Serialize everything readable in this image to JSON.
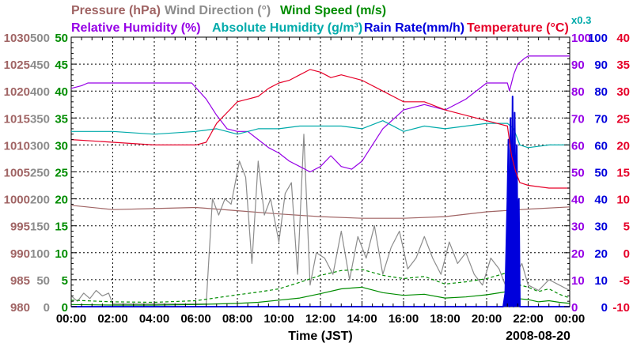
{
  "chart_data": {
    "type": "line",
    "title": "",
    "date": "2008-08-20",
    "xlabel": "Time (JST)",
    "x_ticks": [
      "00:00",
      "02:00",
      "04:00",
      "06:00",
      "08:00",
      "10:00",
      "12:00",
      "14:00",
      "16:00",
      "18:00",
      "20:00",
      "22:00",
      "00:00"
    ],
    "x_range_hours": [
      0,
      24
    ],
    "legend": [
      {
        "key": "pressure",
        "label": "Pressure (hPa)",
        "color": "#a06464"
      },
      {
        "key": "wind_dir",
        "label": "Wind Direction (°)",
        "color": "#8c8c8c"
      },
      {
        "key": "wind_speed",
        "label": "Wind Speed (m/s)",
        "color": "#008c00"
      },
      {
        "key": "rh",
        "label": "Relative Humidity (%)",
        "color": "#9600e6"
      },
      {
        "key": "ah",
        "label": "Absolute Humidity (g/m³)",
        "color": "#00aaaa"
      },
      {
        "key": "rain",
        "label": "Rain Rate(mm/h)",
        "color": "#0000dc"
      },
      {
        "key": "temp",
        "label": "Temperature (°C)",
        "color": "#e60028"
      }
    ],
    "ah_scale_label": "x0.3",
    "axes": {
      "pressure": {
        "range": [
          980,
          1030
        ],
        "ticks": [
          "1030",
          "1025",
          "1020",
          "1015",
          "1010",
          "1005",
          "1000",
          "995",
          "990",
          "985",
          "980"
        ],
        "color": "#a06464"
      },
      "wind_dir": {
        "range": [
          0,
          500
        ],
        "ticks": [
          "500",
          "450",
          "400",
          "350",
          "300",
          "250",
          "200",
          "150",
          "100",
          "50",
          "0"
        ],
        "color": "#8c8c8c"
      },
      "wind_speed": {
        "range": [
          0,
          50
        ],
        "ticks": [
          "50",
          "45",
          "40",
          "35",
          "30",
          "25",
          "20",
          "15",
          "10",
          "5",
          "0"
        ],
        "color": "#008c00"
      },
      "rh": {
        "range": [
          0,
          100
        ],
        "ticks": [
          "100",
          "90",
          "80",
          "70",
          "60",
          "50",
          "40",
          "30",
          "20",
          "10",
          "0"
        ],
        "color": "#9600e6"
      },
      "rain": {
        "range": [
          0,
          100
        ],
        "ticks": [
          "100",
          "90",
          "80",
          "70",
          "60",
          "50",
          "40",
          "30",
          "20",
          "10",
          "0"
        ],
        "color": "#0000dc"
      },
      "temp": {
        "range": [
          -10,
          40
        ],
        "ticks": [
          "40",
          "35",
          "30",
          "25",
          "20",
          "15",
          "10",
          "5",
          "0",
          "-5",
          "-10"
        ],
        "color": "#e60028"
      }
    },
    "series": [
      {
        "name": "Pressure (hPa)",
        "axis": "pressure",
        "color": "#a06464",
        "dash": "",
        "x": [
          0,
          2,
          4,
          6,
          8,
          10,
          12,
          14,
          16,
          18,
          20,
          22,
          24
        ],
        "y": [
          998.8,
          998.0,
          998.2,
          998.4,
          997.8,
          997.2,
          996.7,
          996.4,
          996.4,
          996.7,
          997.6,
          998.1,
          998.5
        ]
      },
      {
        "name": "Wind Direction (°)",
        "axis": "wind_dir",
        "color": "#8c8c8c",
        "dash": "",
        "x": [
          0,
          0.3,
          0.6,
          0.9,
          1.2,
          1.5,
          1.8,
          2,
          6.5,
          6.8,
          7.1,
          7.4,
          7.7,
          8.1,
          8.4,
          8.7,
          9.0,
          9.3,
          9.6,
          10.0,
          10.3,
          10.6,
          10.9,
          11.2,
          11.5,
          11.8,
          12.2,
          12.6,
          13.0,
          13.4,
          13.8,
          14.2,
          14.6,
          15.0,
          15.4,
          15.8,
          16.2,
          16.6,
          17.0,
          17.4,
          17.8,
          18.2,
          18.6,
          19.0,
          19.4,
          19.8,
          20.2,
          20.6,
          21.0,
          21.4,
          21.7,
          22.0,
          22.5,
          23.0,
          23.5,
          24
        ],
        "y": [
          20,
          10,
          25,
          15,
          30,
          20,
          25,
          5,
          5,
          200,
          170,
          200,
          190,
          270,
          240,
          80,
          270,
          170,
          200,
          120,
          210,
          230,
          60,
          320,
          40,
          100,
          90,
          60,
          140,
          50,
          130,
          90,
          150,
          60,
          110,
          140,
          70,
          90,
          130,
          90,
          60,
          120,
          80,
          100,
          60,
          40,
          90,
          70,
          30,
          60,
          80,
          40,
          30,
          50,
          40,
          30
        ]
      },
      {
        "name": "Wind Speed (m/s)",
        "axis": "wind_speed",
        "color": "#008c00",
        "dash": "",
        "x": [
          0,
          2,
          4,
          6,
          8,
          9,
          10,
          11,
          12,
          13,
          14,
          15,
          16,
          17,
          18,
          19,
          20,
          21,
          21.5,
          22,
          22.5,
          23,
          23.5,
          24
        ],
        "y": [
          0.4,
          0.3,
          0.3,
          0.4,
          0.6,
          0.8,
          1.2,
          1.6,
          2.4,
          3.3,
          3.6,
          2.6,
          2.1,
          2.3,
          1.6,
          1.8,
          2.2,
          2.8,
          1.5,
          1.3,
          0.9,
          1.1,
          0.8,
          0.6
        ]
      },
      {
        "name": "Wind Speed gust (m/s)",
        "axis": "wind_speed",
        "color": "#008c00",
        "dash": "4,3",
        "x": [
          0,
          2,
          4,
          6,
          8,
          9,
          10,
          11,
          12,
          13,
          14,
          15,
          16,
          17,
          18,
          19,
          20,
          21,
          21.5,
          22,
          22.5,
          23,
          23.5,
          24
        ],
        "y": [
          1.2,
          0.9,
          0.8,
          1.1,
          2.2,
          2.7,
          3.3,
          4.5,
          5.8,
          6.7,
          6.9,
          5.8,
          5.2,
          5.6,
          4.2,
          4.6,
          5.2,
          6.3,
          4.1,
          3.6,
          2.8,
          3.3,
          2.3,
          1.6
        ]
      },
      {
        "name": "Relative Humidity (%)",
        "axis": "rh",
        "color": "#9600e6",
        "dash": "",
        "x": [
          0,
          0.5,
          0.8,
          2,
          5.8,
          6.5,
          7.0,
          7.5,
          8.0,
          8.5,
          9.0,
          9.5,
          10.0,
          10.5,
          11.0,
          11.5,
          12.0,
          12.5,
          13.0,
          13.5,
          14.0,
          15.0,
          16.0,
          17.0,
          18.0,
          19.0,
          20.0,
          20.5,
          21.0,
          21.1,
          21.3,
          21.5,
          21.8,
          22.0,
          23.0,
          24
        ],
        "y": [
          81,
          82,
          83,
          83,
          83,
          77,
          71,
          66,
          65,
          65,
          62,
          59,
          57,
          54,
          52,
          50,
          52,
          56,
          52,
          51,
          54,
          66,
          73,
          75,
          73,
          77,
          83,
          83,
          83,
          80,
          86,
          90,
          92,
          93,
          93,
          93
        ]
      },
      {
        "name": "Absolute Humidity (x0.3)",
        "axis": "rh",
        "color": "#00aaaa",
        "dash": "",
        "x": [
          0,
          2,
          4,
          6,
          7,
          8,
          9,
          10,
          11,
          12,
          13,
          14,
          15,
          16,
          17,
          18,
          19,
          20,
          21,
          21.3,
          21.6,
          22,
          23,
          24
        ],
        "y": [
          65,
          65,
          64,
          65,
          66,
          64,
          66,
          66,
          67,
          67,
          67,
          66,
          69,
          65,
          67,
          66,
          67,
          68,
          68,
          66,
          60,
          59,
          60,
          60
        ]
      },
      {
        "name": "Rain Rate(mm/h)",
        "axis": "rain",
        "color": "#0000dc",
        "dash": "",
        "x": [
          0,
          20.8,
          20.9,
          21.0,
          21.05,
          21.1,
          21.15,
          21.2,
          21.25,
          21.3,
          21.35,
          21.4,
          21.45,
          21.5,
          21.55,
          21.6,
          21.7,
          22,
          24
        ],
        "y": [
          0,
          0,
          5,
          40,
          62,
          0,
          70,
          20,
          78,
          0,
          72,
          30,
          60,
          10,
          40,
          0,
          0,
          0,
          0
        ]
      },
      {
        "name": "Temperature (°C)",
        "axis": "temp",
        "color": "#e60028",
        "dash": "",
        "x": [
          0,
          2,
          4,
          6,
          6.5,
          7,
          7.5,
          8,
          8.5,
          9,
          9.5,
          10,
          10.5,
          11,
          11.5,
          12,
          12.5,
          13,
          14,
          15,
          16,
          17,
          18,
          19,
          20,
          20.5,
          21,
          21.2,
          21.4,
          21.6,
          22,
          23,
          24
        ],
        "y": [
          21,
          20.5,
          20,
          20,
          20.5,
          24,
          26,
          28,
          28.5,
          29,
          30.5,
          31.5,
          32,
          33,
          34,
          33.5,
          32.5,
          33,
          32,
          30,
          28,
          28,
          26.5,
          25.5,
          24.5,
          24,
          23.5,
          18,
          15,
          13,
          12.5,
          12,
          12
        ]
      }
    ]
  }
}
